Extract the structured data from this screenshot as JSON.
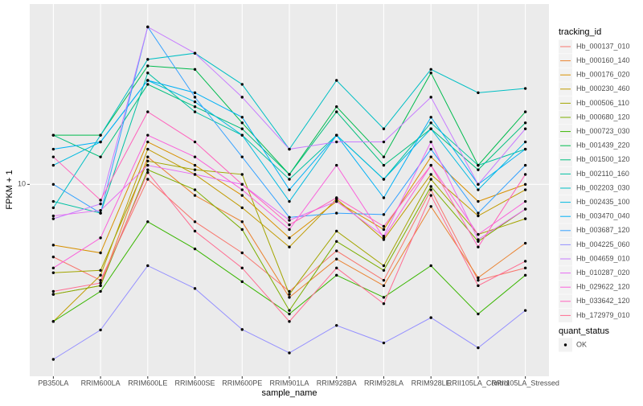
{
  "chart_data": {
    "type": "line",
    "y_label": "FPKM + 1",
    "x_label": "sample_name",
    "log_y": true,
    "grid": true,
    "categories": [
      "PB350LA",
      "RRIM600LA",
      "RRIM600LE",
      "RRIM600SE",
      "RRIM600PE",
      "RRIM901LA",
      "RRIM928BA",
      "RRIM928LA",
      "RRIM928LE",
      "RRII105LA_Control",
      "RRII105LA_Stressed"
    ],
    "ylim": [
      1.6,
      56
    ],
    "yticks": [
      10
    ],
    "legend_title": "tracking_id",
    "series": [
      {
        "name": "Hb_000137_010",
        "color": "#F8766D",
        "values": [
          5.0,
          4.0,
          10.5,
          7.0,
          5.2,
          3.6,
          5.3,
          4.0,
          9.5,
          4.0,
          4.5
        ]
      },
      {
        "name": "Hb_000160_140",
        "color": "#EA8331",
        "values": [
          3.5,
          3.8,
          13,
          9,
          7,
          3.4,
          4.9,
          3.8,
          8.1,
          4.1,
          5.7
        ]
      },
      {
        "name": "Hb_000176_020",
        "color": "#D89000",
        "values": [
          5.6,
          5.2,
          15,
          12,
          9,
          6,
          8.5,
          6.5,
          13,
          8.5,
          10
        ]
      },
      {
        "name": "Hb_000230_460",
        "color": "#C09B00",
        "values": [
          2.7,
          4.2,
          14,
          11,
          8,
          5.5,
          8.7,
          5.9,
          11,
          7.4,
          9.5
        ]
      },
      {
        "name": "Hb_000506_110",
        "color": "#A3A500",
        "values": [
          4.3,
          4.4,
          12.5,
          11.5,
          11,
          3.5,
          6.4,
          4.6,
          10.5,
          6.2,
          7.2
        ]
      },
      {
        "name": "Hb_000680_120",
        "color": "#7CAE00",
        "values": [
          3.5,
          3.8,
          11.5,
          9.5,
          6.5,
          3.0,
          5.8,
          4.4,
          9.8,
          5.8,
          7.9
        ]
      },
      {
        "name": "Hb_000723_030",
        "color": "#39B600",
        "values": [
          2.7,
          3.6,
          7.0,
          5.4,
          3.95,
          2.9,
          4.2,
          3.4,
          4.6,
          2.9,
          4.2
        ]
      },
      {
        "name": "Hb_001439_220",
        "color": "#00BB4E",
        "values": [
          16,
          16,
          31,
          30,
          18,
          11,
          21,
          13,
          29,
          12,
          20
        ]
      },
      {
        "name": "Hb_001500_120",
        "color": "#00BF7D",
        "values": [
          16,
          13,
          26,
          21,
          17,
          11,
          20,
          12,
          17,
          11.5,
          18
        ]
      },
      {
        "name": "Hb_002110_160",
        "color": "#00C1A3",
        "values": [
          8.5,
          7.6,
          29,
          20,
          16,
          10.5,
          16,
          10.5,
          18,
          12,
          14
        ]
      },
      {
        "name": "Hb_002203_030",
        "color": "#00BFC4",
        "values": [
          8,
          16,
          33,
          35,
          26,
          14,
          27,
          17,
          30,
          24,
          25
        ]
      },
      {
        "name": "Hb_002435_100",
        "color": "#00BAE0",
        "values": [
          12,
          15,
          27,
          22,
          16,
          8.5,
          16,
          10.5,
          17,
          9.5,
          15
        ]
      },
      {
        "name": "Hb_003470_040",
        "color": "#00B0F6",
        "values": [
          14,
          15,
          27,
          24,
          19,
          9.5,
          16,
          8.8,
          19,
          10,
          14
        ]
      },
      {
        "name": "Hb_003687_120",
        "color": "#35A2FF",
        "values": [
          10,
          7.6,
          45,
          23,
          13,
          7.3,
          7.6,
          7.5,
          14,
          7.6,
          12
        ]
      },
      {
        "name": "Hb_004225_060",
        "color": "#9590FF",
        "values": [
          1.88,
          2.49,
          4.6,
          3.7,
          2.5,
          2.0,
          2.6,
          2.2,
          2.8,
          2.1,
          3.0
        ]
      },
      {
        "name": "Hb_004659_010",
        "color": "#C77CFF",
        "values": [
          7.2,
          8.3,
          45,
          35,
          23,
          14,
          15,
          15,
          23,
          10,
          17
        ]
      },
      {
        "name": "Hb_010287_020",
        "color": "#E76BF3",
        "values": [
          7.4,
          7.8,
          12,
          11,
          10,
          7.1,
          8.5,
          6.1,
          15,
          5.9,
          7.9
        ]
      },
      {
        "name": "Hb_029622_120",
        "color": "#FA62DB",
        "values": [
          4.5,
          6.0,
          16,
          13,
          9.5,
          6.5,
          12,
          6.0,
          12,
          6.2,
          8.5
        ]
      },
      {
        "name": "Hb_033642_120",
        "color": "#FF62BC",
        "values": [
          13,
          8.6,
          20,
          15,
          10,
          6.8,
          8.8,
          6.7,
          12,
          5.5,
          11
        ]
      },
      {
        "name": "Hb_172979_010",
        "color": "#FF6C91",
        "values": [
          3.6,
          3.9,
          11.2,
          6.4,
          4.5,
          2.7,
          4.5,
          3.2,
          9.0,
          3.8,
          4.8
        ]
      }
    ],
    "shape_legend": {
      "title": "quant_status",
      "items": [
        "OK"
      ]
    }
  }
}
